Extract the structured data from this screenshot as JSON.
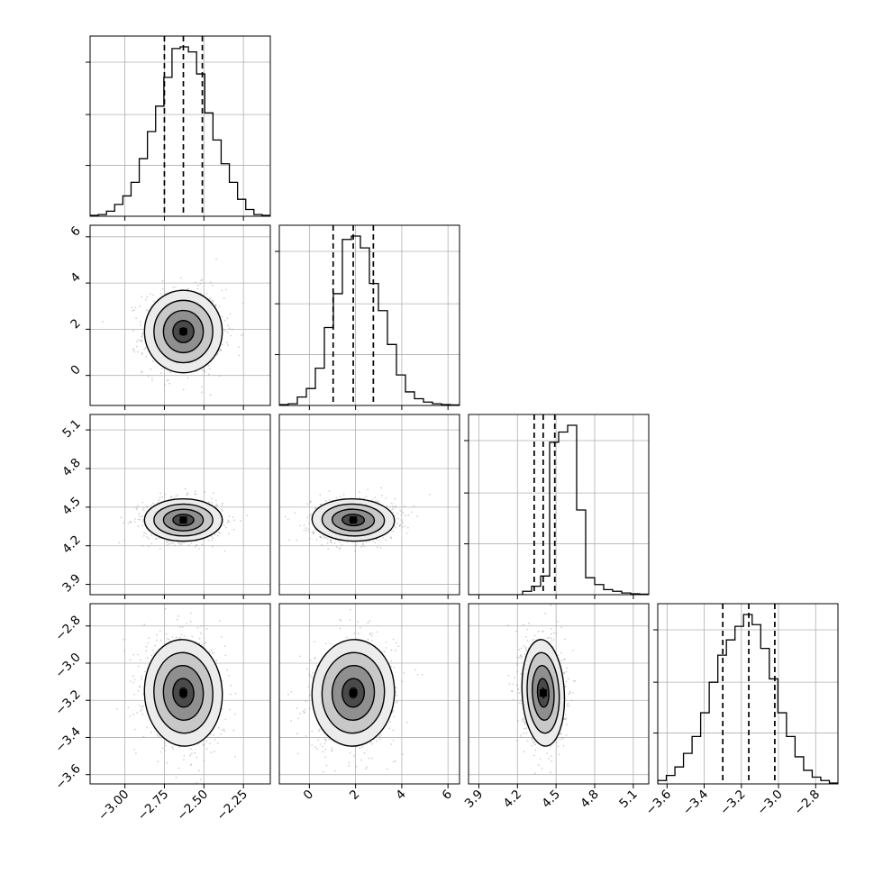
{
  "chart_data": {
    "type": "corner",
    "grid": true,
    "parameters": [
      {
        "id": "p0",
        "median": -2.63,
        "q16": -2.75,
        "q84": -2.51,
        "range": [
          -3.22,
          -2.08
        ],
        "ticks": [
          {
            "v": -3.0,
            "label": "−3.00"
          },
          {
            "v": -2.75,
            "label": "−2.75"
          },
          {
            "v": -2.5,
            "label": "−2.50"
          },
          {
            "v": -2.25,
            "label": "−2.25"
          }
        ],
        "hist": [
          0.005,
          0.01,
          0.03,
          0.07,
          0.12,
          0.2,
          0.34,
          0.5,
          0.65,
          0.82,
          0.99,
          1.0,
          0.97,
          0.84,
          0.61,
          0.45,
          0.31,
          0.2,
          0.1,
          0.04,
          0.01,
          0.005
        ]
      },
      {
        "id": "p1",
        "median": 1.9,
        "q16": 1.03,
        "q84": 2.77,
        "range": [
          -1.3,
          6.5
        ],
        "ticks": [
          {
            "v": 0,
            "label": "0"
          },
          {
            "v": 2,
            "label": "2"
          },
          {
            "v": 4,
            "label": "4"
          },
          {
            "v": 6,
            "label": "6"
          }
        ],
        "hist": [
          0.005,
          0.01,
          0.05,
          0.1,
          0.22,
          0.46,
          0.66,
          0.98,
          1.0,
          0.93,
          0.72,
          0.56,
          0.36,
          0.18,
          0.08,
          0.04,
          0.02,
          0.01,
          0.005,
          0.003
        ]
      },
      {
        "id": "p2",
        "median": 4.4,
        "q16": 4.33,
        "q84": 4.49,
        "range": [
          3.82,
          5.22
        ],
        "ticks": [
          {
            "v": 3.9,
            "label": "3.9"
          },
          {
            "v": 4.2,
            "label": "4.2"
          },
          {
            "v": 4.5,
            "label": "4.5"
          },
          {
            "v": 4.8,
            "label": "4.8"
          },
          {
            "v": 5.1,
            "label": "5.1"
          }
        ],
        "hist": [
          0.0,
          0.0,
          0.0,
          0.0,
          0.0,
          0.0,
          0.02,
          0.05,
          0.11,
          0.9,
          0.96,
          1.0,
          0.5,
          0.1,
          0.06,
          0.03,
          0.02,
          0.01,
          0.005,
          0.003
        ]
      },
      {
        "id": "p3",
        "median": -3.16,
        "q16": -3.3,
        "q84": -3.02,
        "range": [
          -3.65,
          -2.68
        ],
        "ticks": [
          {
            "v": -3.6,
            "label": "−3.6"
          },
          {
            "v": -3.4,
            "label": "−3.4"
          },
          {
            "v": -3.2,
            "label": "−3.2"
          },
          {
            "v": -3.0,
            "label": "−3.0"
          },
          {
            "v": -2.8,
            "label": "−2.8"
          }
        ],
        "hist": [
          0.02,
          0.05,
          0.1,
          0.18,
          0.28,
          0.42,
          0.6,
          0.76,
          0.85,
          0.93,
          1.0,
          0.94,
          0.8,
          0.62,
          0.42,
          0.28,
          0.16,
          0.08,
          0.04,
          0.02,
          0.005
        ]
      }
    ],
    "correlations": [
      {
        "x": 0,
        "y": 1,
        "rho": 0.0
      },
      {
        "x": 0,
        "y": 2,
        "rho": 0.0
      },
      {
        "x": 1,
        "y": 2,
        "rho": 0.05
      },
      {
        "x": 0,
        "y": 3,
        "rho": -0.1
      },
      {
        "x": 1,
        "y": 3,
        "rho": 0.1
      },
      {
        "x": 2,
        "y": 3,
        "rho": -0.1
      }
    ],
    "contour_levels_sigma": [
      0.5,
      1.0,
      1.5,
      2.0
    ]
  }
}
